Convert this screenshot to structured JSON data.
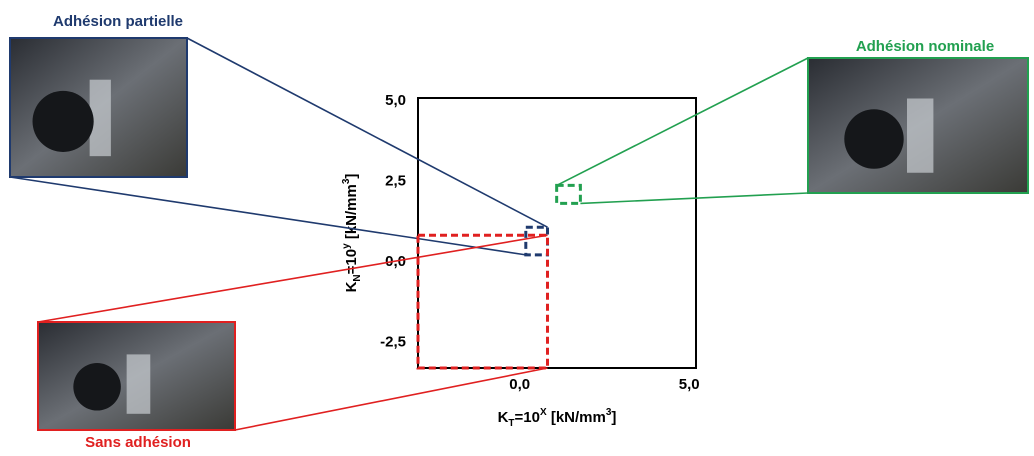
{
  "chart_data": {
    "type": "region-map",
    "x_label": [
      "K",
      "T",
      "=10",
      "X",
      " [kN/mm",
      "3",
      "]"
    ],
    "y_label": [
      "K",
      "N",
      "=10",
      "y",
      " [kN/mm",
      "3",
      "]"
    ],
    "xlim": [
      -3,
      5.2
    ],
    "ylim": [
      -3.3,
      5.1
    ],
    "xticks": [
      {
        "value": 0,
        "label": "0,0"
      },
      {
        "value": 5,
        "label": "5,0"
      }
    ],
    "yticks": [
      {
        "value": -2.5,
        "label": "-2,5"
      },
      {
        "value": 0,
        "label": "0,0"
      },
      {
        "value": 2.5,
        "label": "2,5"
      },
      {
        "value": 5,
        "label": "5,0"
      }
    ],
    "regions": [
      {
        "name": "Adhésion partielle",
        "color": "#1f3a6e",
        "x": [
          0.18,
          0.82
        ],
        "y": [
          0.22,
          1.08
        ]
      },
      {
        "name": "Adhésion nominale",
        "color": "#22a050",
        "x": [
          1.09,
          1.79
        ],
        "y": [
          1.82,
          2.38
        ]
      },
      {
        "name": "Sans adhésion",
        "color": "#e02020",
        "x": [
          -3,
          0.82
        ],
        "y": [
          -3.3,
          0.83
        ]
      }
    ]
  }
}
